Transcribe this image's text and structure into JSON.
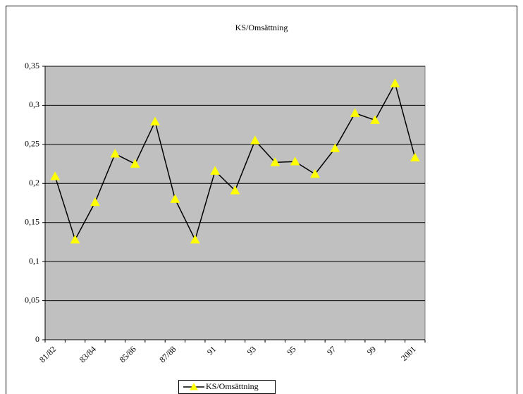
{
  "chart_data": {
    "type": "line",
    "title": "KS/Omsättning",
    "categories": [
      "81/82",
      null,
      "83/84",
      null,
      "85/86",
      null,
      "87/88",
      null,
      "91",
      null,
      "93",
      null,
      "95",
      null,
      "97",
      null,
      "99",
      null,
      "2001"
    ],
    "series": [
      {
        "name": "KS/Omsättning",
        "color": "#000000",
        "marker_color": "#ffff00",
        "values": [
          0.209,
          0.128,
          0.176,
          0.238,
          0.225,
          0.279,
          0.18,
          0.128,
          0.216,
          0.191,
          0.255,
          0.227,
          0.228,
          0.212,
          0.245,
          0.29,
          0.281,
          0.328,
          0.233
        ]
      }
    ],
    "ylim": [
      0,
      0.35
    ],
    "yticks": [
      0,
      {
        "value": 0.05,
        "label": "0,05"
      },
      {
        "value": 0.1,
        "label": "0,1"
      },
      {
        "value": 0.15,
        "label": "0,15"
      },
      {
        "value": 0.2,
        "label": "0,2"
      },
      {
        "value": 0.25,
        "label": "0,25"
      },
      {
        "value": 0.3,
        "label": "0,3"
      },
      {
        "value": 0.35,
        "label": "0,35"
      }
    ],
    "grid": true,
    "plot_background": "#c0c0c0",
    "legend": "bottom"
  }
}
